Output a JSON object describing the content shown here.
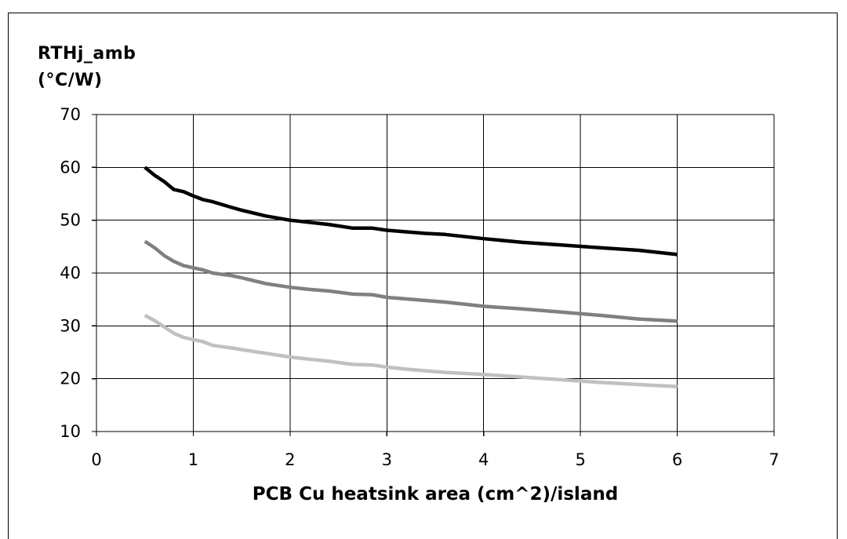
{
  "header_fragment": "",
  "chart_data": {
    "type": "line",
    "title": "",
    "xlabel": "PCB Cu heatsink area (cm^2)/island",
    "ylabel_lines": [
      "RTHj_amb",
      "(°C/W)"
    ],
    "xlim": [
      0,
      7
    ],
    "ylim": [
      10,
      70
    ],
    "x_ticks": [
      0,
      1,
      2,
      3,
      4,
      5,
      6,
      7
    ],
    "y_ticks": [
      10,
      20,
      30,
      40,
      50,
      60,
      70
    ],
    "grid": true,
    "legend": false,
    "series": [
      {
        "color": "#000000",
        "x": [
          0.5,
          0.6,
          0.7,
          0.8,
          0.9,
          1.0,
          1.1,
          1.2,
          1.4,
          1.5,
          1.75,
          2.0,
          2.2,
          2.4,
          2.65,
          2.85,
          3.0,
          3.2,
          3.4,
          3.6,
          4.0,
          4.4,
          4.8,
          5.2,
          5.6,
          6.0
        ],
        "y": [
          60.0,
          58.5,
          57.3,
          55.8,
          55.4,
          54.6,
          53.9,
          53.5,
          52.4,
          51.9,
          50.8,
          50.0,
          49.6,
          49.2,
          48.5,
          48.5,
          48.1,
          47.8,
          47.5,
          47.3,
          46.5,
          45.8,
          45.3,
          44.8,
          44.3,
          43.5
        ]
      },
      {
        "color": "#808080",
        "x": [
          0.5,
          0.6,
          0.7,
          0.8,
          0.9,
          1.0,
          1.1,
          1.2,
          1.4,
          1.5,
          1.75,
          2.0,
          2.2,
          2.4,
          2.65,
          2.85,
          3.0,
          3.2,
          3.4,
          3.6,
          4.0,
          4.4,
          4.8,
          5.2,
          5.6,
          6.0
        ],
        "y": [
          46.0,
          44.8,
          43.3,
          42.2,
          41.4,
          41.0,
          40.6,
          40.0,
          39.5,
          39.1,
          38.0,
          37.3,
          36.9,
          36.6,
          36.0,
          35.9,
          35.4,
          35.1,
          34.8,
          34.5,
          33.7,
          33.2,
          32.6,
          32.0,
          31.3,
          30.9
        ]
      },
      {
        "color": "#c0c0c0",
        "x": [
          0.5,
          0.6,
          0.7,
          0.8,
          0.9,
          1.0,
          1.1,
          1.2,
          1.4,
          1.5,
          1.75,
          2.0,
          2.2,
          2.4,
          2.65,
          2.85,
          3.0,
          3.2,
          3.4,
          3.6,
          4.0,
          4.4,
          4.8,
          5.2,
          5.6,
          6.0
        ],
        "y": [
          32.0,
          31.0,
          29.8,
          28.6,
          27.8,
          27.4,
          27.0,
          26.3,
          25.8,
          25.5,
          24.8,
          24.1,
          23.7,
          23.3,
          22.7,
          22.6,
          22.2,
          21.8,
          21.5,
          21.2,
          20.8,
          20.3,
          19.8,
          19.3,
          18.9,
          18.5
        ]
      }
    ]
  }
}
